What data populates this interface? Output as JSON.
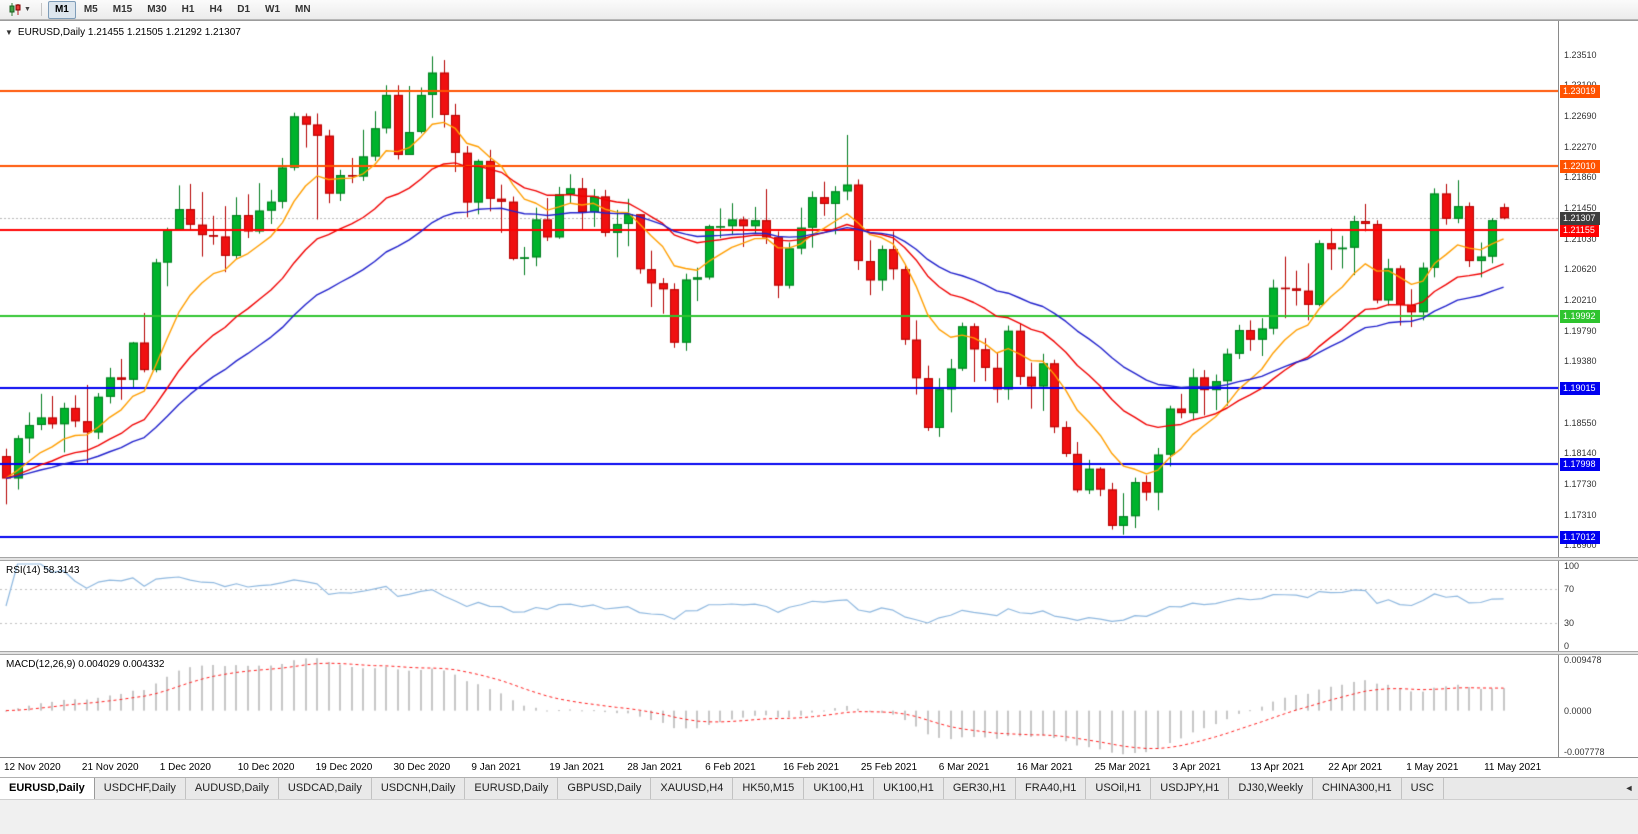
{
  "toolbar": {
    "timeframes": [
      {
        "label": "M1",
        "active": true
      },
      {
        "label": "M5",
        "active": false
      },
      {
        "label": "M15",
        "active": false
      },
      {
        "label": "M30",
        "active": false
      },
      {
        "label": "H1",
        "active": false
      },
      {
        "label": "H4",
        "active": false
      },
      {
        "label": "D1",
        "active": false
      },
      {
        "label": "W1",
        "active": false
      },
      {
        "label": "MN",
        "active": false
      }
    ]
  },
  "chart": {
    "title_full": "EURUSD,Daily 1.21455 1.21505 1.21292 1.21307"
  },
  "chart_data": {
    "type": "candlestick",
    "symbol": "EURUSD",
    "timeframe": "Daily",
    "ohlc": {
      "open": 1.21455,
      "high": 1.21505,
      "low": 1.21292,
      "close": 1.21307
    },
    "price_axis_ticks": [
      "1.23510",
      "1.23100",
      "1.22690",
      "1.22270",
      "1.21860",
      "1.21450",
      "1.21030",
      "1.20620",
      "1.20210",
      "1.19790",
      "1.19380",
      "1.18970",
      "1.18550",
      "1.18140",
      "1.17730",
      "1.17310",
      "1.16900"
    ],
    "price_range": {
      "top": 1.2398,
      "bottom": 1.1674
    },
    "date_labels": [
      "12 Nov 2020",
      "21 Nov 2020",
      "1 Dec 2020",
      "10 Dec 2020",
      "19 Dec 2020",
      "30 Dec 2020",
      "9 Jan 2021",
      "19 Jan 2021",
      "28 Jan 2021",
      "6 Feb 2021",
      "16 Feb 2021",
      "25 Feb 2021",
      "6 Mar 2021",
      "16 Mar 2021",
      "25 Mar 2021",
      "3 Apr 2021",
      "13 Apr 2021",
      "22 Apr 2021",
      "1 May 2021",
      "11 May 2021"
    ],
    "candles": [
      [
        1.181,
        1.182,
        1.1745,
        1.178
      ],
      [
        1.178,
        1.1838,
        1.1765,
        1.1834
      ],
      [
        1.1834,
        1.1869,
        1.1814,
        1.1852
      ],
      [
        1.1852,
        1.1894,
        1.1845,
        1.1862
      ],
      [
        1.1862,
        1.1891,
        1.1847,
        1.1853
      ],
      [
        1.1853,
        1.1882,
        1.1815,
        1.1875
      ],
      [
        1.1875,
        1.1892,
        1.1849,
        1.1857
      ],
      [
        1.1857,
        1.1906,
        1.18,
        1.1842
      ],
      [
        1.1842,
        1.1895,
        1.1833,
        1.189
      ],
      [
        1.189,
        1.1929,
        1.1881,
        1.1916
      ],
      [
        1.1916,
        1.1941,
        1.1886,
        1.1913
      ],
      [
        1.1913,
        1.1964,
        1.1901,
        1.1963
      ],
      [
        1.1963,
        1.2003,
        1.1923,
        1.1926
      ],
      [
        1.1926,
        1.2076,
        1.1923,
        1.2071
      ],
      [
        1.2071,
        1.2118,
        1.2039,
        1.2115
      ],
      [
        1.2115,
        1.2175,
        1.2114,
        1.2143
      ],
      [
        1.2143,
        1.2177,
        1.2115,
        1.2122
      ],
      [
        1.2122,
        1.2166,
        1.2079,
        1.2108
      ],
      [
        1.2108,
        1.2134,
        1.2095,
        1.2106
      ],
      [
        1.2106,
        1.2147,
        1.2058,
        1.208
      ],
      [
        1.208,
        1.2159,
        1.2076,
        1.2135
      ],
      [
        1.2135,
        1.2163,
        1.2104,
        1.2113
      ],
      [
        1.2113,
        1.2178,
        1.211,
        1.2141
      ],
      [
        1.2141,
        1.2169,
        1.2123,
        1.2153
      ],
      [
        1.2153,
        1.2212,
        1.2144,
        1.2199
      ],
      [
        1.2199,
        1.2273,
        1.2195,
        1.2268
      ],
      [
        1.2268,
        1.2272,
        1.2226,
        1.2257
      ],
      [
        1.2257,
        1.2272,
        1.2129,
        1.2242
      ],
      [
        1.2242,
        1.225,
        1.2151,
        1.2164
      ],
      [
        1.2164,
        1.2196,
        1.2154,
        1.2189
      ],
      [
        1.2189,
        1.2212,
        1.2178,
        1.2187
      ],
      [
        1.2187,
        1.225,
        1.2181,
        1.2214
      ],
      [
        1.2214,
        1.2275,
        1.2208,
        1.2252
      ],
      [
        1.2252,
        1.231,
        1.2245,
        1.2297
      ],
      [
        1.2297,
        1.231,
        1.221,
        1.2216
      ],
      [
        1.2216,
        1.2309,
        1.2216,
        1.2247
      ],
      [
        1.2247,
        1.2307,
        1.2245,
        1.2297
      ],
      [
        1.2297,
        1.2349,
        1.2266,
        1.2327
      ],
      [
        1.2327,
        1.2344,
        1.2253,
        1.227
      ],
      [
        1.227,
        1.2285,
        1.2193,
        1.2219
      ],
      [
        1.2219,
        1.2228,
        1.2132,
        1.2152
      ],
      [
        1.2152,
        1.221,
        1.2136,
        1.2208
      ],
      [
        1.2208,
        1.2223,
        1.214,
        1.2157
      ],
      [
        1.2157,
        1.2176,
        1.2111,
        1.2153
      ],
      [
        1.2153,
        1.216,
        1.2074,
        1.2076
      ],
      [
        1.2076,
        1.2092,
        1.2054,
        1.2078
      ],
      [
        1.2078,
        1.2145,
        1.2066,
        1.2129
      ],
      [
        1.2129,
        1.2158,
        1.21,
        1.2105
      ],
      [
        1.2105,
        1.2173,
        1.2103,
        1.2163
      ],
      [
        1.2163,
        1.219,
        1.2151,
        1.2171
      ],
      [
        1.2171,
        1.2185,
        1.2116,
        1.2139
      ],
      [
        1.2139,
        1.217,
        1.2119,
        1.216
      ],
      [
        1.216,
        1.2169,
        1.2106,
        1.2111
      ],
      [
        1.2111,
        1.2142,
        1.2078,
        1.2123
      ],
      [
        1.2123,
        1.2157,
        1.2093,
        1.2136
      ],
      [
        1.2136,
        1.2136,
        1.2056,
        1.2062
      ],
      [
        1.2062,
        1.2087,
        1.2011,
        1.2043
      ],
      [
        1.2043,
        1.205,
        1.2002,
        1.2035
      ],
      [
        1.2035,
        1.2043,
        1.1956,
        1.1963
      ],
      [
        1.1963,
        1.2056,
        1.1952,
        1.2048
      ],
      [
        1.2048,
        1.2064,
        1.2019,
        1.2051
      ],
      [
        1.2051,
        1.2122,
        1.2048,
        1.212
      ],
      [
        1.212,
        1.2144,
        1.2104,
        1.212
      ],
      [
        1.212,
        1.2151,
        1.2108,
        1.2129
      ],
      [
        1.2129,
        1.2133,
        1.2092,
        1.212
      ],
      [
        1.212,
        1.2146,
        1.211,
        1.2128
      ],
      [
        1.2128,
        1.217,
        1.2096,
        1.2105
      ],
      [
        1.2105,
        1.2113,
        1.2023,
        1.204
      ],
      [
        1.204,
        1.2098,
        1.2036,
        1.209
      ],
      [
        1.209,
        1.2145,
        1.2082,
        1.2118
      ],
      [
        1.2118,
        1.2167,
        1.2091,
        1.2159
      ],
      [
        1.2159,
        1.218,
        1.2134,
        1.215
      ],
      [
        1.215,
        1.2174,
        1.2109,
        1.2167
      ],
      [
        1.2167,
        1.2243,
        1.2155,
        1.2176
      ],
      [
        1.2176,
        1.2183,
        1.2061,
        1.2073
      ],
      [
        1.2073,
        1.2101,
        1.2027,
        1.2047
      ],
      [
        1.2047,
        1.2094,
        1.2033,
        1.2089
      ],
      [
        1.2089,
        1.2113,
        1.2048,
        1.2062
      ],
      [
        1.2062,
        1.2069,
        1.196,
        1.1967
      ],
      [
        1.1967,
        1.1993,
        1.1893,
        1.1915
      ],
      [
        1.1915,
        1.1932,
        1.1844,
        1.1848
      ],
      [
        1.1848,
        1.1915,
        1.1836,
        1.19
      ],
      [
        1.19,
        1.1941,
        1.1869,
        1.1928
      ],
      [
        1.1928,
        1.199,
        1.1925,
        1.1985
      ],
      [
        1.1985,
        1.1989,
        1.191,
        1.1954
      ],
      [
        1.1954,
        1.1969,
        1.1911,
        1.1929
      ],
      [
        1.1929,
        1.195,
        1.1882,
        1.19
      ],
      [
        1.19,
        1.1986,
        1.1886,
        1.1979
      ],
      [
        1.1979,
        1.1989,
        1.1906,
        1.1917
      ],
      [
        1.1917,
        1.1936,
        1.1874,
        1.1904
      ],
      [
        1.1904,
        1.1948,
        1.1871,
        1.1935
      ],
      [
        1.1935,
        1.194,
        1.1841,
        1.1849
      ],
      [
        1.1849,
        1.1857,
        1.1809,
        1.1813
      ],
      [
        1.1813,
        1.1829,
        1.1761,
        1.1764
      ],
      [
        1.1764,
        1.1805,
        1.1759,
        1.1793
      ],
      [
        1.1793,
        1.1795,
        1.1756,
        1.1765
      ],
      [
        1.1765,
        1.1774,
        1.1711,
        1.1716
      ],
      [
        1.1716,
        1.176,
        1.1704,
        1.1729
      ],
      [
        1.1729,
        1.1781,
        1.1713,
        1.1775
      ],
      [
        1.1775,
        1.1784,
        1.175,
        1.1761
      ],
      [
        1.1761,
        1.1821,
        1.1737,
        1.1812
      ],
      [
        1.1812,
        1.1878,
        1.1796,
        1.1874
      ],
      [
        1.1874,
        1.1894,
        1.1861,
        1.1868
      ],
      [
        1.1868,
        1.1928,
        1.186,
        1.1916
      ],
      [
        1.1916,
        1.1926,
        1.1865,
        1.1899
      ],
      [
        1.1899,
        1.192,
        1.1872,
        1.1911
      ],
      [
        1.1911,
        1.1955,
        1.1878,
        1.1948
      ],
      [
        1.1948,
        1.1987,
        1.1941,
        1.198
      ],
      [
        1.198,
        1.1993,
        1.1952,
        1.1967
      ],
      [
        1.1967,
        1.1996,
        1.1945,
        1.1982
      ],
      [
        1.1982,
        1.2048,
        1.1974,
        1.2037
      ],
      [
        1.2037,
        1.2079,
        1.1996,
        1.2036
      ],
      [
        1.2036,
        1.206,
        1.2013,
        1.2033
      ],
      [
        1.2033,
        1.207,
        1.1993,
        1.2014
      ],
      [
        1.2014,
        1.2101,
        1.2012,
        1.2097
      ],
      [
        1.2097,
        1.2117,
        1.2061,
        1.2089
      ],
      [
        1.2089,
        1.2107,
        1.2063,
        1.2091
      ],
      [
        1.2091,
        1.2134,
        1.2054,
        1.2127
      ],
      [
        1.2127,
        1.215,
        1.2113,
        1.2123
      ],
      [
        1.2123,
        1.2128,
        1.2016,
        1.202
      ],
      [
        1.202,
        1.2076,
        1.2013,
        1.2063
      ],
      [
        1.2063,
        1.2067,
        1.1986,
        1.2014
      ],
      [
        1.2014,
        1.2035,
        1.1984,
        1.2004
      ],
      [
        1.2004,
        1.2071,
        1.1993,
        1.2064
      ],
      [
        1.2064,
        1.2171,
        1.2051,
        1.2164
      ],
      [
        1.2164,
        1.2177,
        1.2122,
        1.213
      ],
      [
        1.213,
        1.2182,
        1.2124,
        1.2147
      ],
      [
        1.2147,
        1.2152,
        1.2065,
        1.2073
      ],
      [
        1.2073,
        1.2098,
        1.2051,
        1.2079
      ],
      [
        1.2079,
        1.2131,
        1.207,
        1.2128
      ],
      [
        1.21455,
        1.21505,
        1.21292,
        1.21307
      ]
    ],
    "hlines": [
      {
        "price": 1.23019,
        "label": "1.23019",
        "color": "#FF5200"
      },
      {
        "price": 1.2201,
        "label": "1.22010",
        "color": "#FF5200"
      },
      {
        "price": 1.21155,
        "label": "1.21155",
        "color": "#FF0000"
      },
      {
        "price": 1.19992,
        "label": "1.19992",
        "color": "#2FC42F"
      },
      {
        "price": 1.19015,
        "label": "1.19015",
        "color": "#0000F0"
      },
      {
        "price": 1.17998,
        "label": "1.17998",
        "color": "#0000F0"
      },
      {
        "price": 1.17012,
        "label": "1.17012",
        "color": "#0000F0"
      }
    ],
    "current_price": {
      "value": 1.21307,
      "label": "1.21307",
      "tag_color": "#3E3E3E",
      "line_color": "#B8B8B8"
    },
    "candle_colors": {
      "up_fill": "#00B32C",
      "up_border": "#007C1E",
      "down_fill": "#EF1010",
      "down_border": "#B40000"
    },
    "moving_averages": [
      {
        "name": "ma-fast",
        "period": 9,
        "color": "#FF9E00"
      },
      {
        "name": "ma-mid",
        "period": 20,
        "color": "#F00000"
      },
      {
        "name": "ma-slow",
        "period": 34,
        "color": "#2121CC"
      }
    ],
    "rsi": {
      "label": "RSI(14) 58.3143",
      "period": 14,
      "value": 58.3143,
      "levels": [
        70,
        30
      ],
      "axis_ticks": [
        "100",
        "70",
        "30",
        "0"
      ],
      "range": [
        0,
        100
      ],
      "color": "#8FB8DF"
    },
    "macd": {
      "label": "MACD(12,26,9) 0.004029 0.004332",
      "fast": 12,
      "slow": 26,
      "signal_period": 9,
      "macd_value": 0.004029,
      "signal_value": 0.004332,
      "axis_ticks": [
        "0.009478",
        "0.0000",
        "-0.007778"
      ],
      "range": [
        -0.007778,
        0.009478
      ],
      "histogram_color": "#C6C6C6",
      "signal_color": "#FF2020"
    }
  },
  "tabs": {
    "items": [
      {
        "label": "EURUSD,Daily",
        "active": true
      },
      {
        "label": "USDCHF,Daily",
        "active": false
      },
      {
        "label": "AUDUSD,Daily",
        "active": false
      },
      {
        "label": "USDCAD,Daily",
        "active": false
      },
      {
        "label": "USDCNH,Daily",
        "active": false
      },
      {
        "label": "EURUSD,Daily",
        "active": false
      },
      {
        "label": "GBPUSD,Daily",
        "active": false
      },
      {
        "label": "XAUUSD,H4",
        "active": false
      },
      {
        "label": "HK50,M15",
        "active": false
      },
      {
        "label": "UK100,H1",
        "active": false
      },
      {
        "label": "UK100,H1",
        "active": false
      },
      {
        "label": "GER30,H1",
        "active": false
      },
      {
        "label": "FRA40,H1",
        "active": false
      },
      {
        "label": "USOil,H1",
        "active": false
      },
      {
        "label": "USDJPY,H1",
        "active": false
      },
      {
        "label": "DJ30,Weekly",
        "active": false
      },
      {
        "label": "CHINA300,H1",
        "active": false
      },
      {
        "label": "USC",
        "active": false
      }
    ]
  }
}
